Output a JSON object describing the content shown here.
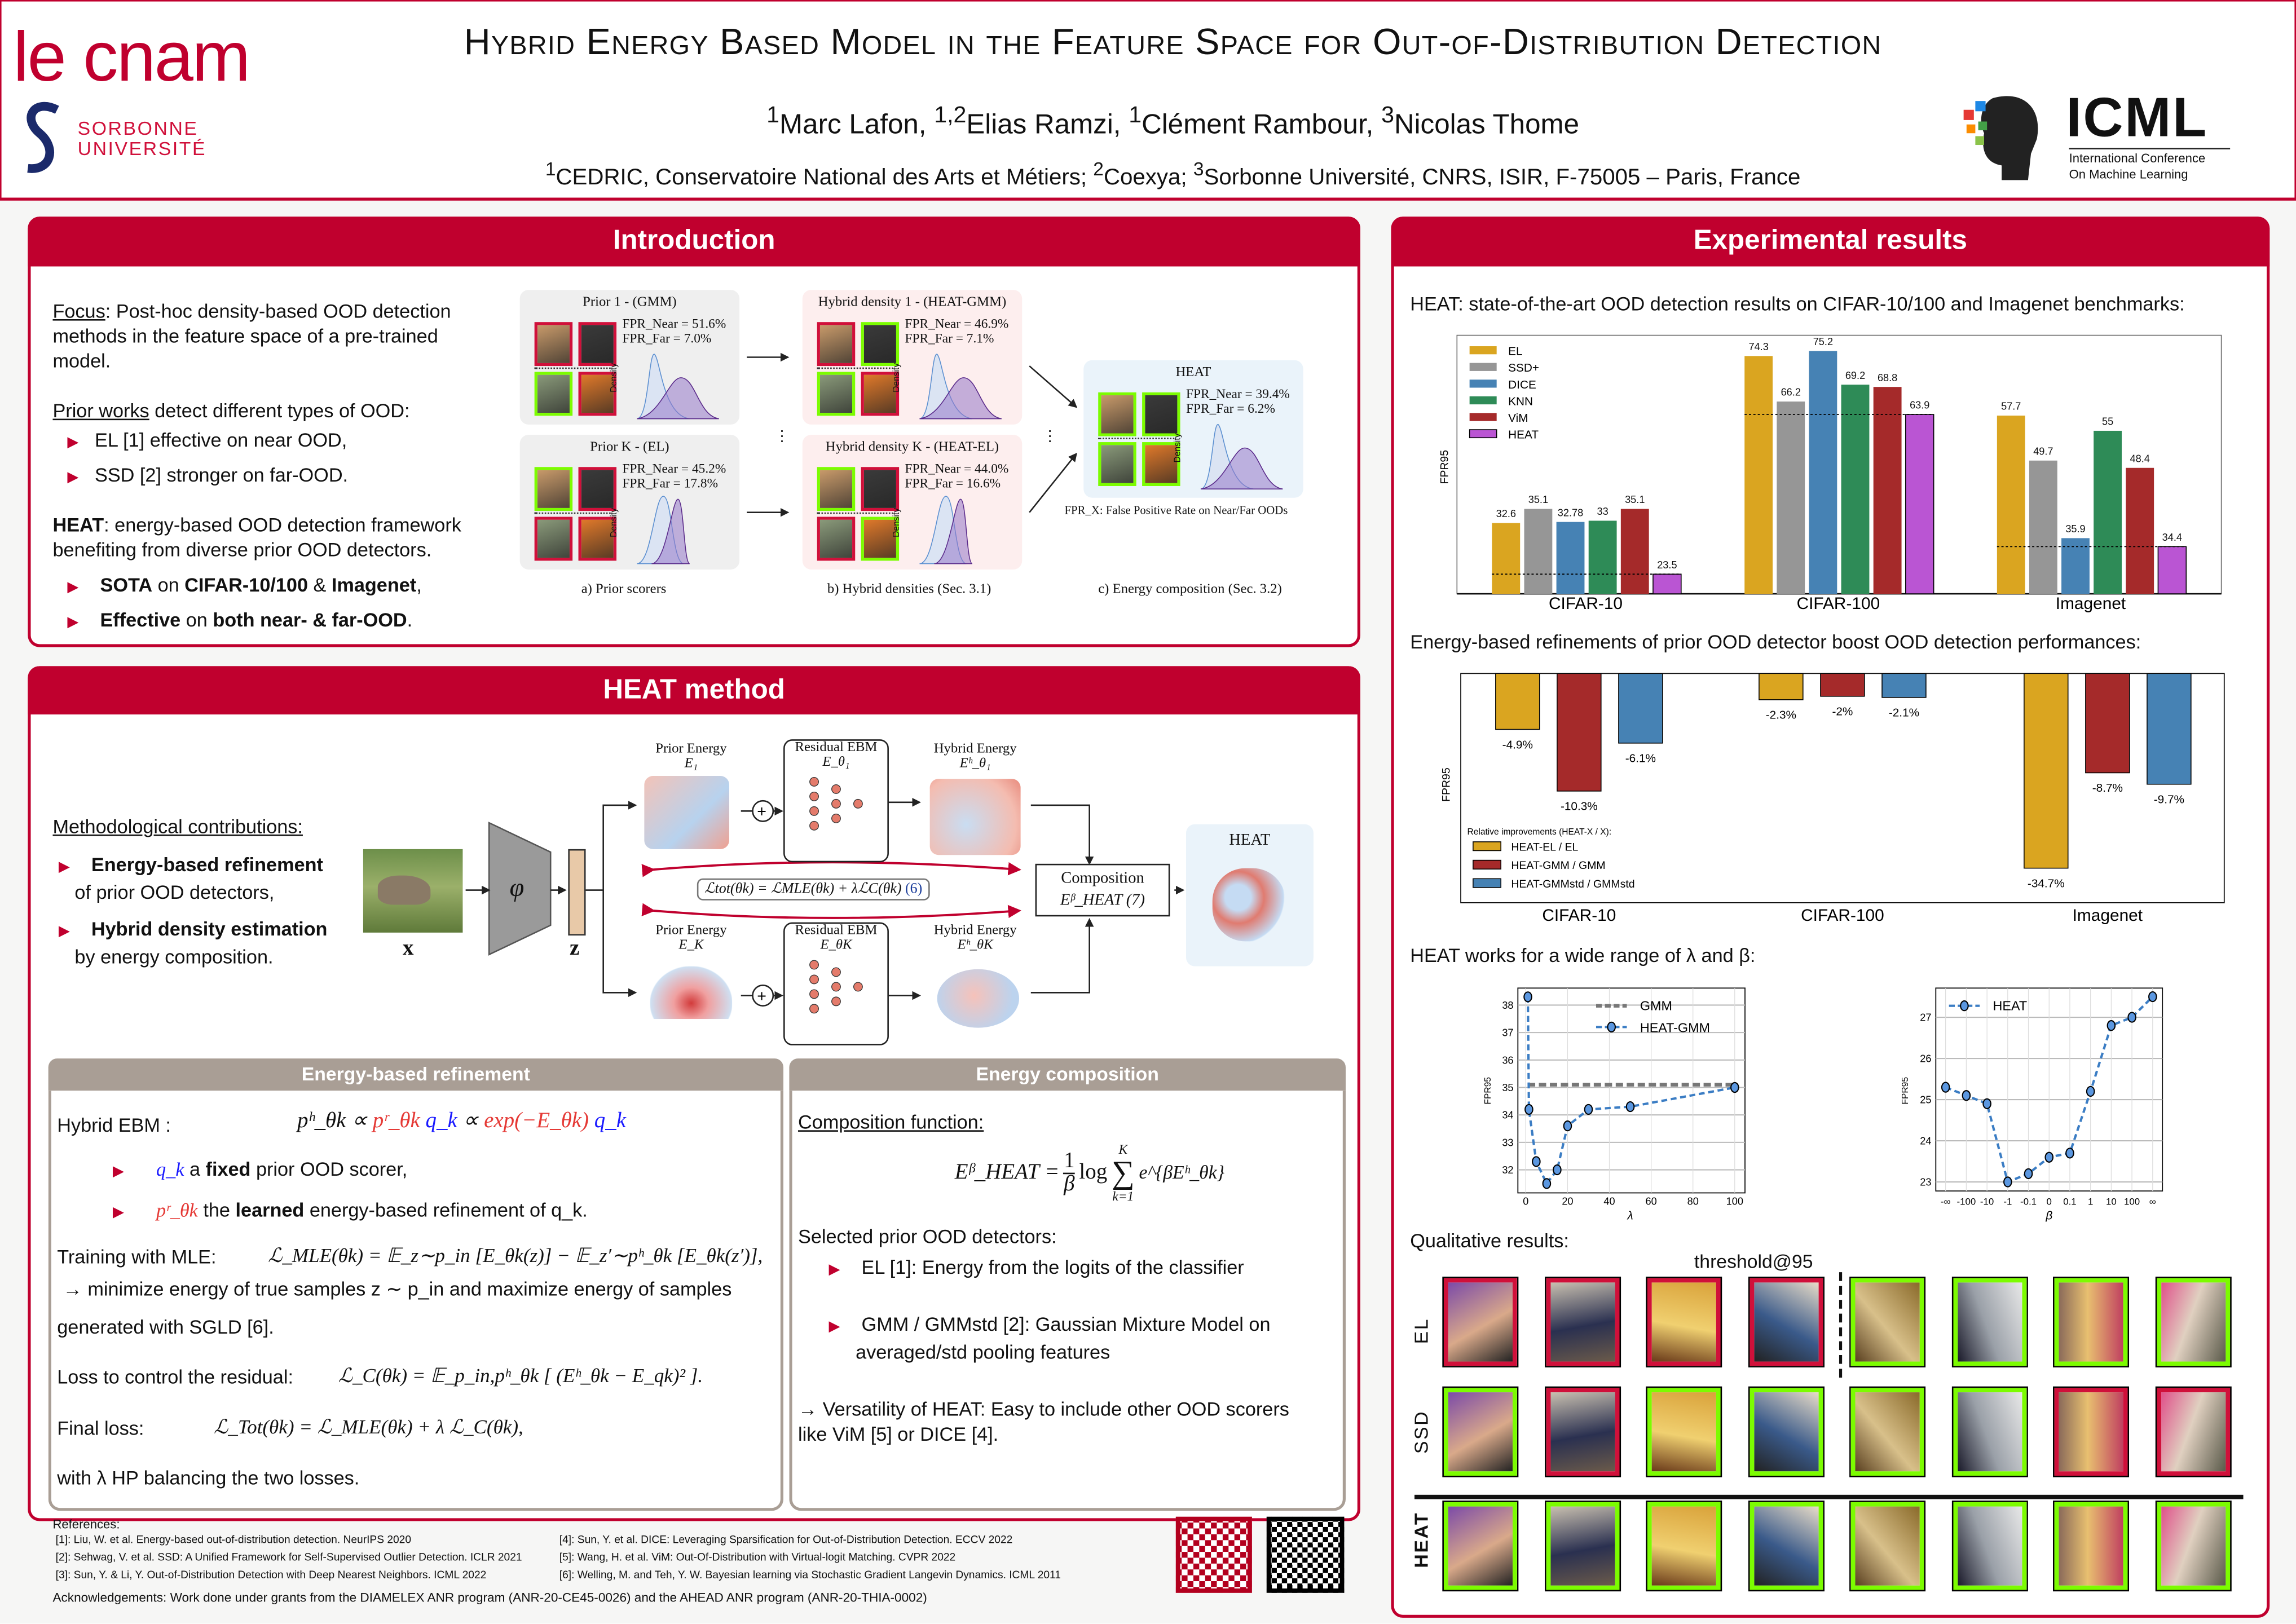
{
  "header": {
    "title": "Hybrid Energy Based Model in the Feature Space for Out-of-Distribution Detection",
    "authors": [
      {
        "sup": "1",
        "name": "Marc Lafon,"
      },
      {
        "sup": "1,2",
        "name": "Elias Ramzi,"
      },
      {
        "sup": "1",
        "name": "Clément Rambour,"
      },
      {
        "sup": "3",
        "name": "Nicolas Thome"
      }
    ],
    "affiliations": [
      {
        "sup": "1",
        "name": "CEDRIC, Conservatoire National des Arts et Métiers;"
      },
      {
        "sup": "2",
        "name": "Coexya;"
      },
      {
        "sup": "3",
        "name": "Sorbonne Université, CNRS, ISIR, F-75005 – Paris, France"
      }
    ],
    "logo_cnam": "le cnam",
    "logo_sorbonne": [
      "SORBONNE",
      "UNIVERSITÉ"
    ],
    "logo_icml": "ICML",
    "logo_icml_sub": [
      "International Conference",
      "On Machine Learning"
    ],
    "brand_color": "#c0002e"
  },
  "intro": {
    "title": "Introduction",
    "focus_label": "Focus",
    "focus_lines": [
      ": Post-hoc density-based OOD detection",
      "methods in the feature space of a pre-trained",
      "model."
    ],
    "prior_label": "Prior works",
    "prior_rest": " detect different types of OOD:",
    "prior_bullets": [
      "EL [1] effective on near OOD,",
      "SSD [2] stronger on far-OOD."
    ],
    "heat_label": "HEAT",
    "heat_lines": [
      ": energy-based OOD detection framework",
      "benefiting from diverse prior OOD detectors."
    ],
    "bullets": [
      {
        "bold": "SOTA",
        "mid": " on ",
        "bold2": "CIFAR-10/100",
        "mid2": " & ",
        "bold3": "Imagenet",
        "end": ","
      },
      {
        "bold": "Effective",
        "mid": " on ",
        "bold2": "both near- & far-OOD",
        "mid2": "",
        "bold3": "",
        "end": "."
      }
    ],
    "figure": {
      "boxes": [
        {
          "title": "Prior 1 - (GMM)",
          "near": "FPR_Near = 51.6%",
          "far": "FPR_Far = 7.0%",
          "borders": [
            "#d0103a",
            "#d0103a",
            "#7cfc00",
            "#d0103a"
          ]
        },
        {
          "title": "Prior K - (EL)",
          "near": "FPR_Near = 45.2%",
          "far": "FPR_Far = 17.8%",
          "borders": [
            "#7cfc00",
            "#d0103a",
            "#d0103a",
            "#d0103a"
          ]
        },
        {
          "title": "Hybrid density 1 - (HEAT-GMM)",
          "near": "FPR_Near = 46.9%",
          "far": "FPR_Far = 7.1%",
          "borders": [
            "#d0103a",
            "#7cfc00",
            "#7cfc00",
            "#d0103a"
          ]
        },
        {
          "title": "Hybrid density K - (HEAT-EL)",
          "near": "FPR_Near = 44.0%",
          "far": "FPR_Far = 16.6%",
          "borders": [
            "#7cfc00",
            "#d0103a",
            "#d0103a",
            "#7cfc00"
          ]
        },
        {
          "title": "HEAT",
          "near": "FPR_Near = 39.4%",
          "far": "FPR_Far = 6.2%",
          "borders": [
            "#7cfc00",
            "#7cfc00",
            "#7cfc00",
            "#7cfc00"
          ]
        }
      ],
      "density_label": "Density",
      "fpr_note": "FPR_X: False Positive Rate on Near/Far OODs",
      "captions": [
        "a) Prior scorers",
        "b) Hybrid densities (Sec. 3.1)",
        "c) Energy composition (Sec. 3.2)"
      ]
    }
  },
  "method": {
    "title": "HEAT method",
    "contrib_title": "Methodological contributions:",
    "contribs": [
      {
        "bold": "Energy-based refinement",
        "rest": "of prior OOD detectors,"
      },
      {
        "bold": "Hybrid density estimation",
        "rest": "by energy composition."
      }
    ],
    "diagram": {
      "x_label": "x",
      "phi_label": "φ",
      "z_label": "z",
      "prior_top": [
        "Prior Energy",
        "E₁"
      ],
      "resid_top": [
        "Residual EBM",
        "E_θ₁"
      ],
      "hybrid_top": [
        "Hybrid Energy",
        "Eʰ_θ₁"
      ],
      "prior_bot": [
        "Prior Energy",
        "E_K"
      ],
      "resid_bot": [
        "Residual EBM",
        "E_θK"
      ],
      "hybrid_bot": [
        "Hybrid Energy",
        "Eʰ_θK"
      ],
      "loss": "ℒtot(θk) = ℒMLE(θk) + λℒC(θk)",
      "loss_ref": "(6)",
      "composition": [
        "Composition",
        "Eᵝ_HEAT (7)"
      ],
      "heat": "HEAT"
    },
    "refinement": {
      "title": "Energy-based refinement",
      "hybrid_label": "Hybrid EBM :",
      "hybrid_formula": {
        "a": "pʰ_θk ∝ ",
        "b": "pʳ_θk",
        "c": " q_k",
        "d": " ∝ ",
        "e": "exp(−E_θk)",
        "f": " q_k"
      },
      "bullet1": {
        "sym": "q_k",
        "pre": " a ",
        "bold": "fixed",
        "rest": " prior OOD scorer,"
      },
      "bullet2": {
        "sym": "pʳ_θk",
        "pre": " the ",
        "bold": "learned",
        "rest": " energy-based refinement of q_k."
      },
      "training_label": "Training with MLE:",
      "training_formula": "ℒ_MLE(θk) = 𝔼_z∼p_in [E_θk(z)] − 𝔼_z′∼pʰ_θk [E_θk(z′)],",
      "training_line2": "→ minimize energy of true samples z ∼ p_in and maximize energy of samples",
      "training_line3": "generated with SGLD [6].",
      "residual_label": "Loss to control the residual:",
      "residual_formula": "ℒ_C(θk) = 𝔼_p_in,pʰ_θk [ (Eʰ_θk − E_qk)² ].",
      "final_label": "Final loss:",
      "final_formula": "ℒ_Tot(θk) = ℒ_MLE(θk) + λ ℒ_C(θk),",
      "with_line": "with λ HP balancing the two losses."
    },
    "composition": {
      "title": "Energy composition",
      "func_label": "Composition function:",
      "formula_lhs": "Eᵝ_HEAT = ",
      "formula_frac": [
        "1",
        "β"
      ],
      "formula_rest": "log",
      "formula_sum_top": "K",
      "formula_sum_bot": "k=1",
      "formula_exp": "e^{βEʰ_θk}",
      "selected": "Selected prior OOD detectors:",
      "bullets": [
        [
          "EL [1]: Energy from the logits of the classifier"
        ],
        [
          "GMM / GMMstd [2]: Gaussian Mixture Model on",
          "averaged/std pooling features"
        ]
      ],
      "versatility": [
        "→ Versatility of HEAT:  Easy to include other OOD scorers",
        "like ViM [5] or DICE [4]."
      ]
    }
  },
  "references": {
    "title": "References:",
    "items": [
      "[1]: Liu, W. et al. Energy-based out-of-distribution detection. NeurIPS 2020",
      "[2]: Sehwag, V. et al. SSD: A Unified Framework for Self-Supervised Outlier Detection. ICLR 2021",
      "[3]: Sun, Y. & Li, Y. Out-of-Distribution Detection with Deep Nearest Neighbors. ICML 2022",
      "[4]: Sun, Y. et al. DICE: Leveraging Sparsification for Out-of-Distribution Detection. ECCV 2022",
      "[5]: Wang, H. et al. ViM: Out-Of-Distribution with Virtual-logit Matching. CVPR 2022",
      "[6]: Welling, M. and Teh, Y. W. Bayesian learning via Stochastic Gradient Langevin Dynamics. ICML 2011"
    ],
    "acknowledgements": "Acknowledgements: Work done under grants from the DIAMELEX ANR program (ANR-20-CE45-0026) and the AHEAD ANR program (ANR-20-THIA-0002)"
  },
  "results": {
    "title": "Experimental results",
    "text1": "HEAT: state-of-the-art OOD detection results on CIFAR-10/100 and Imagenet benchmarks:",
    "text2": "Energy-based refinements of prior OOD detector boost OOD detection performances:",
    "text3": "HEAT works for a wide range of λ and β:",
    "text4": "Qualitative results:",
    "qualitative": {
      "threshold_label": "threshold@95",
      "rows": [
        {
          "label": "EL",
          "correct": [
            false,
            false,
            false,
            false,
            true,
            true,
            true,
            true
          ]
        },
        {
          "label": "SSD",
          "correct": [
            true,
            false,
            true,
            true,
            true,
            true,
            false,
            false
          ]
        },
        {
          "label": "HEAT",
          "correct": [
            true,
            true,
            true,
            true,
            true,
            true,
            true,
            true
          ]
        }
      ],
      "correct_color": "#7cfc00",
      "wrong_color": "#d0103a"
    }
  },
  "chart_data": [
    {
      "type": "bar",
      "ylabel": "FPR95",
      "categories": [
        "CIFAR-10",
        "CIFAR-100",
        "Imagenet"
      ],
      "group_ymin": [
        20,
        32,
        26
      ],
      "series": [
        {
          "name": "EL",
          "color": "#daa520",
          "values": [
            32.6,
            74.3,
            57.7
          ]
        },
        {
          "name": "SSD+",
          "color": "#969696",
          "values": [
            35.1,
            66.2,
            49.7
          ]
        },
        {
          "name": "DICE",
          "color": "#4682b4",
          "values": [
            32.78,
            75.2,
            35.9
          ]
        },
        {
          "name": "KNN",
          "color": "#2e8b57",
          "values": [
            33.0,
            69.2,
            55.0
          ]
        },
        {
          "name": "ViM",
          "color": "#a52a2a",
          "values": [
            35.1,
            68.8,
            48.4
          ]
        },
        {
          "name": "HEAT",
          "color": "#ba55d3",
          "values": [
            23.5,
            63.9,
            34.4
          ]
        }
      ],
      "labels": [
        [
          "32.6",
          "66.2"
        ],
        []
      ],
      "legend": "top-left",
      "reference_line": "HEAT value (dotted)"
    },
    {
      "type": "bar",
      "ylabel": "FPR95",
      "categories": [
        "CIFAR-10",
        "CIFAR-100",
        "Imagenet"
      ],
      "legend_title": "Relative improvements (HEAT-X / X):",
      "series": [
        {
          "name": "HEAT-EL / EL",
          "color": "#daa520",
          "values": [
            -4.9,
            -2.3,
            -34.7
          ],
          "labels": [
            "-4.9%",
            "-2.3%",
            "-34.7%"
          ]
        },
        {
          "name": "HEAT-GMM / GMM",
          "color": "#a52a2a",
          "values": [
            -10.3,
            -2.0,
            -8.7
          ],
          "labels": [
            "-10.3%",
            "-2%",
            "-8.7%"
          ]
        },
        {
          "name": "HEAT-GMMstd / GMMstd",
          "color": "#4682b4",
          "values": [
            -6.1,
            -2.1,
            -9.7
          ],
          "labels": [
            "-6.1%",
            "-2.1%",
            "-9.7%"
          ]
        }
      ],
      "legend": "bottom-left"
    },
    {
      "type": "line",
      "xlabel": "λ",
      "ylabel": "FPR95",
      "xlim": [
        0,
        100
      ],
      "ylim": [
        31.16,
        38.62
      ],
      "xticks": [
        0,
        20,
        40,
        60,
        80,
        100
      ],
      "yticks": [
        32,
        33,
        34,
        35,
        36,
        37,
        38
      ],
      "grid": true,
      "series": [
        {
          "name": "GMM",
          "style": "dashed",
          "color": "#777777",
          "x": [
            1,
            100
          ],
          "y": [
            35.1,
            35.1
          ]
        },
        {
          "name": "HEAT-GMM",
          "style": "dashed-marker",
          "color": "#3b7dc4",
          "x": [
            1,
            1.5,
            5,
            10,
            15,
            20,
            30,
            50,
            100
          ],
          "y": [
            38.3,
            34.2,
            32.3,
            31.5,
            32.0,
            33.6,
            34.2,
            34.3,
            35.0
          ]
        }
      ],
      "legend": "top-right"
    },
    {
      "type": "line",
      "xlabel": "β",
      "ylabel": "FPR95",
      "categories": [
        "-∞",
        "-100",
        "-10",
        "-1",
        "-0.1",
        "0",
        "0.1",
        "1",
        "10",
        "100",
        "∞"
      ],
      "ylim": [
        22.78,
        27.71
      ],
      "yticks": [
        23,
        24,
        25,
        26,
        27
      ],
      "grid": true,
      "series": [
        {
          "name": "HEAT",
          "style": "dashed-marker",
          "color": "#3b7dc4",
          "y": [
            25.3,
            25.1,
            24.9,
            23.0,
            23.2,
            23.6,
            23.7,
            25.2,
            26.8,
            27.0,
            27.5
          ]
        }
      ],
      "legend": "top-left"
    }
  ]
}
